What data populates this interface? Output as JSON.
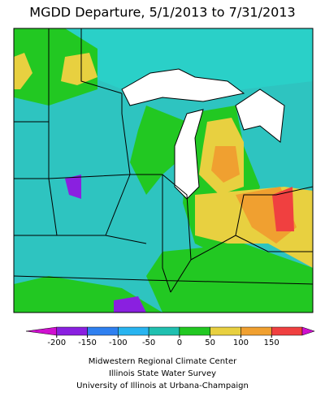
{
  "title": "MGDD Departure, 5/1/2013 to 7/31/2013",
  "legend": {
    "ticks": [
      -200,
      -150,
      -100,
      -50,
      0,
      50,
      100,
      150
    ],
    "colors": [
      "#d010d0",
      "#8a20e0",
      "#2f80f0",
      "#28b4f0",
      "#20c0b0",
      "#22c822",
      "#e8d040",
      "#f0a030",
      "#f04040"
    ],
    "overflow_color": "#d010d0"
  },
  "credits": [
    "Midwestern Regional Climate Center",
    "Illinois State Water Survey",
    "University of Illinois at Urbana-Champaign"
  ]
}
